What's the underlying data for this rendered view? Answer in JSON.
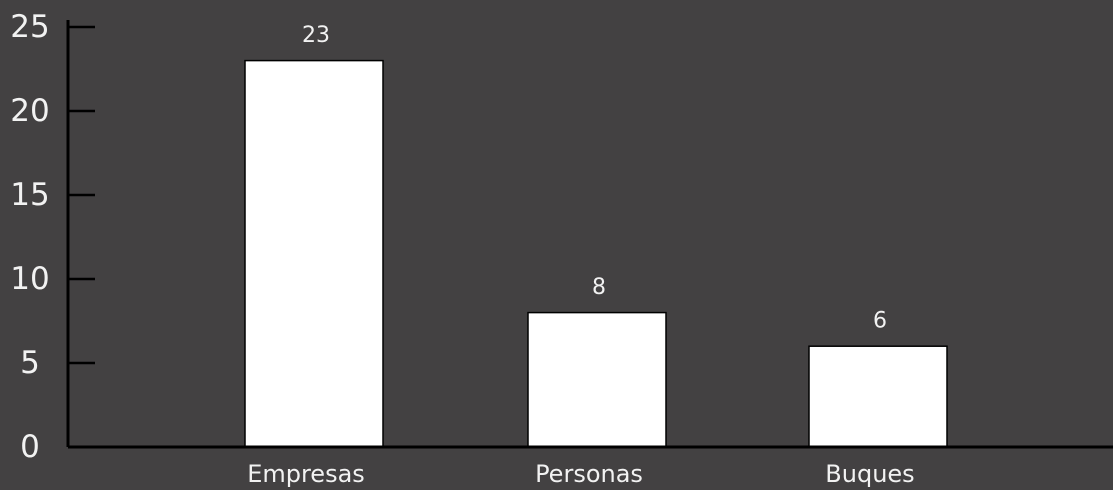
{
  "chart_data": {
    "type": "bar",
    "categories": [
      "Empresas",
      "Personas",
      "Buques"
    ],
    "values": [
      23,
      8,
      6
    ],
    "data_labels": [
      "23",
      "8",
      "6"
    ],
    "yticks": [
      0,
      5,
      10,
      15,
      20,
      25
    ],
    "ylim": [
      0,
      25
    ],
    "grid": false,
    "legend": "none",
    "colors": {
      "background": "#434142",
      "bar_fill": "#ffffff",
      "axis": "#000000",
      "text": "#f2f2f2"
    }
  }
}
